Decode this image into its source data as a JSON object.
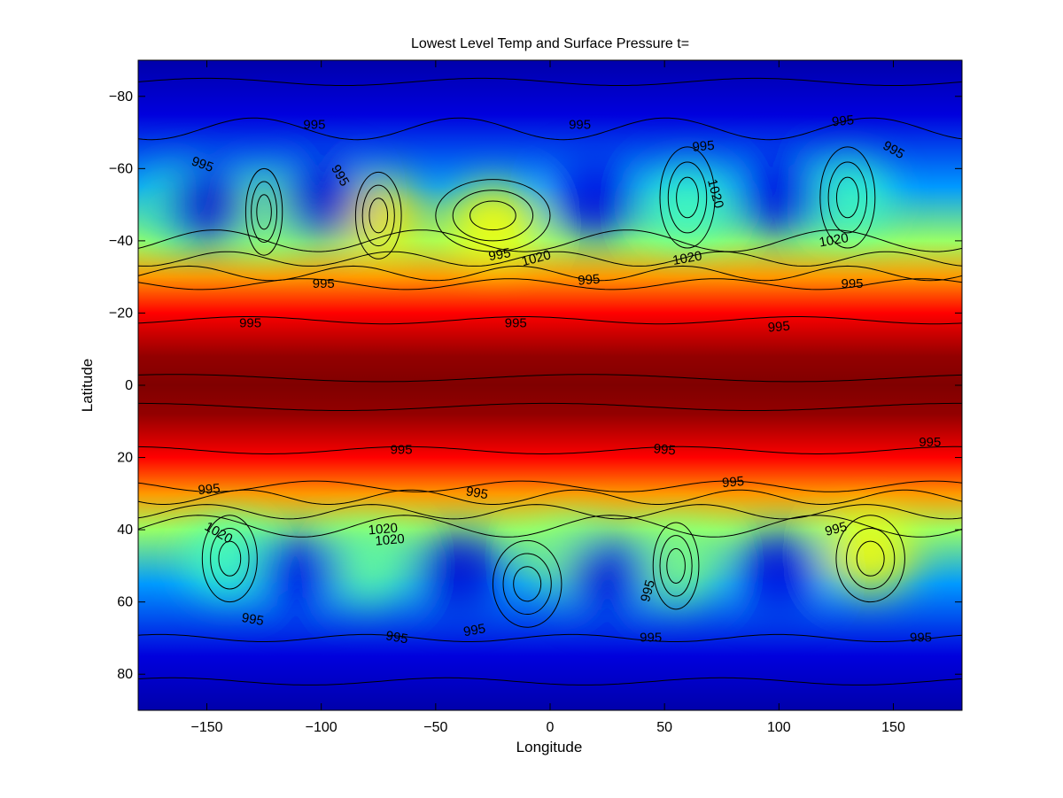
{
  "chart_data": {
    "type": "heatmap",
    "title": "Lowest Level Temp and Surface Pressure t=",
    "xlabel": "Longitude",
    "ylabel": "Latitude",
    "xlim": [
      -180,
      180
    ],
    "ylim": [
      -90,
      90
    ],
    "y_direction": "reversed",
    "x_ticks": [
      -150,
      -100,
      -50,
      0,
      50,
      100,
      150
    ],
    "y_ticks": [
      -80,
      -60,
      -40,
      -20,
      0,
      20,
      40,
      60,
      80
    ],
    "x_tick_labels": [
      "−150",
      "−100",
      "−50",
      "0",
      "50",
      "100",
      "150"
    ],
    "y_tick_labels": [
      "−80",
      "−60",
      "−40",
      "−20",
      "0",
      "20",
      "40",
      "60",
      "80"
    ],
    "colormap": "jet",
    "colormap_colors": [
      "#00008f",
      "#0000ff",
      "#00ffff",
      "#ffff00",
      "#ff0000",
      "#800000"
    ],
    "temperature_bands": [
      {
        "latitude": -90,
        "level": 0.05
      },
      {
        "latitude": -75,
        "level": 0.14
      },
      {
        "latitude": -55,
        "level": 0.32
      },
      {
        "latitude": -40,
        "level": 0.52
      },
      {
        "latitude": -30,
        "level": 0.68
      },
      {
        "latitude": -20,
        "level": 0.8
      },
      {
        "latitude": -8,
        "level": 0.97
      },
      {
        "latitude": 0,
        "level": 1.0
      },
      {
        "latitude": 8,
        "level": 0.97
      },
      {
        "latitude": 20,
        "level": 0.8
      },
      {
        "latitude": 30,
        "level": 0.68
      },
      {
        "latitude": 40,
        "level": 0.52
      },
      {
        "latitude": 55,
        "level": 0.32
      },
      {
        "latitude": 75,
        "level": 0.14
      },
      {
        "latitude": 90,
        "level": 0.05
      }
    ],
    "warm_cells": [
      {
        "lon": -160,
        "lat": -50,
        "level": 0.45
      },
      {
        "lon": -125,
        "lat": -48,
        "level": 0.5
      },
      {
        "lon": -75,
        "lat": -47,
        "level": 0.62
      },
      {
        "lon": -25,
        "lat": -45,
        "level": 0.6
      },
      {
        "lon": 60,
        "lat": -50,
        "level": 0.45
      },
      {
        "lon": 130,
        "lat": -52,
        "level": 0.45
      },
      {
        "lon": -140,
        "lat": 48,
        "level": 0.45
      },
      {
        "lon": -80,
        "lat": 50,
        "level": 0.48
      },
      {
        "lon": 10,
        "lat": 48,
        "level": 0.5
      },
      {
        "lon": 55,
        "lat": 50,
        "level": 0.5
      },
      {
        "lon": 140,
        "lat": 47,
        "level": 0.6
      }
    ],
    "cold_cells": [
      {
        "lon": -150,
        "lat": -50,
        "level": 0.12
      },
      {
        "lon": -100,
        "lat": -52,
        "level": 0.12
      },
      {
        "lon": 20,
        "lat": -52,
        "level": 0.14
      },
      {
        "lon": 100,
        "lat": -53,
        "level": 0.14
      },
      {
        "lon": -110,
        "lat": 52,
        "level": 0.15
      },
      {
        "lon": -40,
        "lat": 52,
        "level": 0.12
      },
      {
        "lon": 25,
        "lat": 53,
        "level": 0.14
      },
      {
        "lon": 100,
        "lat": 52,
        "level": 0.14
      }
    ],
    "contour_lines": [
      {
        "lat": -84,
        "amp": 1,
        "wave": 3
      },
      {
        "lat": -71,
        "amp": 3,
        "wave": 4
      },
      {
        "lat": -40,
        "amp": 3,
        "wave": 4
      },
      {
        "lat": -35,
        "amp": 2,
        "wave": 5
      },
      {
        "lat": -31,
        "amp": 2,
        "wave": 5
      },
      {
        "lat": -28,
        "amp": 1.5,
        "wave": 4
      },
      {
        "lat": -18,
        "amp": 1,
        "wave": 3
      },
      {
        "lat": -2,
        "amp": 1,
        "wave": 2
      },
      {
        "lat": 6,
        "amp": 1,
        "wave": 2
      },
      {
        "lat": 18,
        "amp": 1,
        "wave": 3
      },
      {
        "lat": 28,
        "amp": 1.5,
        "wave": 4
      },
      {
        "lat": 31,
        "amp": 2,
        "wave": 5
      },
      {
        "lat": 35,
        "amp": 2,
        "wave": 5
      },
      {
        "lat": 39,
        "amp": 3,
        "wave": 4
      },
      {
        "lat": 70,
        "amp": 1,
        "wave": 4
      },
      {
        "lat": 82,
        "amp": 1,
        "wave": 3
      }
    ],
    "contour_loops": [
      {
        "lon": -125,
        "lat": -48,
        "rx": 8,
        "ry": 12
      },
      {
        "lon": -75,
        "lat": -47,
        "rx": 10,
        "ry": 12
      },
      {
        "lon": -25,
        "lat": -47,
        "rx": 25,
        "ry": 10
      },
      {
        "lon": 60,
        "lat": -52,
        "rx": 12,
        "ry": 14
      },
      {
        "lon": 130,
        "lat": -52,
        "rx": 12,
        "ry": 14
      },
      {
        "lon": -140,
        "lat": 48,
        "rx": 12,
        "ry": 12
      },
      {
        "lon": 55,
        "lat": 50,
        "rx": 10,
        "ry": 12
      },
      {
        "lon": 140,
        "lat": 48,
        "rx": 15,
        "ry": 12
      },
      {
        "lon": -10,
        "lat": 55,
        "rx": 15,
        "ry": 12
      }
    ],
    "contour_labels": [
      {
        "text": "995",
        "lon": -103,
        "lat": -72,
        "angle": 0
      },
      {
        "text": "995",
        "lon": 13,
        "lat": -72,
        "angle": 0
      },
      {
        "text": "995",
        "lon": 128,
        "lat": -73,
        "angle": -5
      },
      {
        "text": "995",
        "lon": 67,
        "lat": -66,
        "angle": -5
      },
      {
        "text": "995",
        "lon": 150,
        "lat": -65,
        "angle": 30
      },
      {
        "text": "995",
        "lon": -152,
        "lat": -61,
        "angle": 20
      },
      {
        "text": "995",
        "lon": -92,
        "lat": -58,
        "angle": 60
      },
      {
        "text": "1020",
        "lon": 72,
        "lat": -53,
        "angle": 75
      },
      {
        "text": "1020",
        "lon": 124,
        "lat": -40,
        "angle": -10
      },
      {
        "text": "995",
        "lon": -22,
        "lat": -36,
        "angle": -10
      },
      {
        "text": "1020",
        "lon": -6,
        "lat": -35,
        "angle": -15
      },
      {
        "text": "1020",
        "lon": 60,
        "lat": -35,
        "angle": -10
      },
      {
        "text": "995",
        "lon": -99,
        "lat": -28,
        "angle": 0
      },
      {
        "text": "995",
        "lon": 17,
        "lat": -29,
        "angle": -5
      },
      {
        "text": "995",
        "lon": 132,
        "lat": -28,
        "angle": 0
      },
      {
        "text": "995",
        "lon": -131,
        "lat": -17,
        "angle": 0
      },
      {
        "text": "995",
        "lon": -15,
        "lat": -17,
        "angle": 0
      },
      {
        "text": "995",
        "lon": 100,
        "lat": -16,
        "angle": -5
      },
      {
        "text": "995",
        "lon": -65,
        "lat": 18,
        "angle": 0
      },
      {
        "text": "995",
        "lon": 50,
        "lat": 18,
        "angle": 5
      },
      {
        "text": "995",
        "lon": 166,
        "lat": 16,
        "angle": 0
      },
      {
        "text": "995",
        "lon": -149,
        "lat": 29,
        "angle": -5
      },
      {
        "text": "995",
        "lon": -32,
        "lat": 30,
        "angle": 10
      },
      {
        "text": "995",
        "lon": 80,
        "lat": 27,
        "angle": -5
      },
      {
        "text": "1020",
        "lon": -145,
        "lat": 41,
        "angle": 30
      },
      {
        "text": "1020",
        "lon": -73,
        "lat": 40,
        "angle": -5
      },
      {
        "text": "1020",
        "lon": -70,
        "lat": 43,
        "angle": -5
      },
      {
        "text": "995",
        "lon": 125,
        "lat": 40,
        "angle": -15
      },
      {
        "text": "995",
        "lon": 43,
        "lat": 57,
        "angle": -75
      },
      {
        "text": "995",
        "lon": -130,
        "lat": 65,
        "angle": 10
      },
      {
        "text": "995",
        "lon": -67,
        "lat": 70,
        "angle": 10
      },
      {
        "text": "995",
        "lon": -33,
        "lat": 68,
        "angle": -10
      },
      {
        "text": "995",
        "lon": 44,
        "lat": 70,
        "angle": 0
      },
      {
        "text": "995",
        "lon": 162,
        "lat": 70,
        "angle": 0
      }
    ]
  }
}
